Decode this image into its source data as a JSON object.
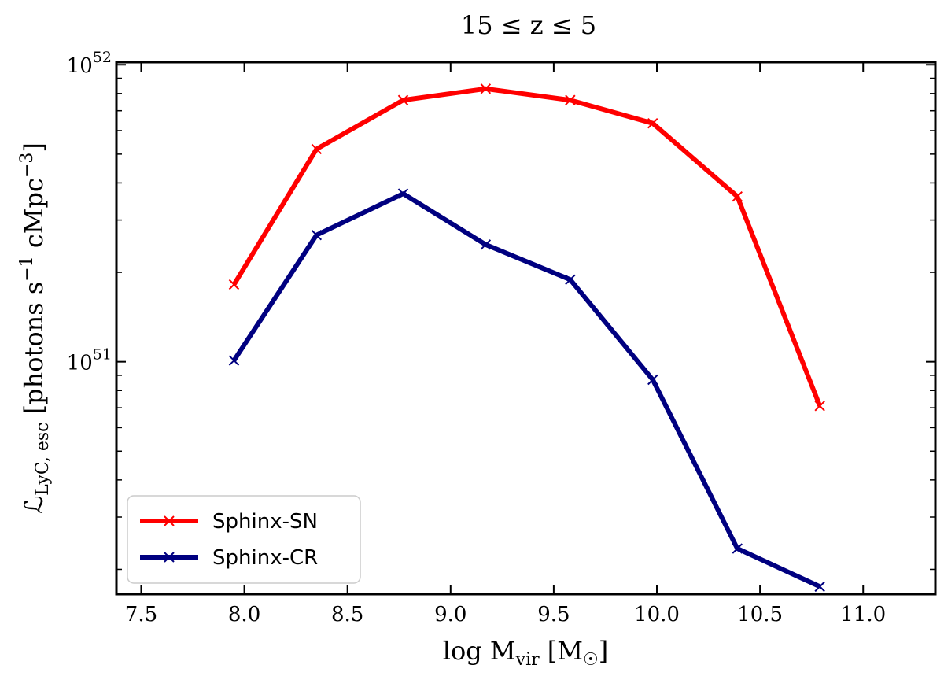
{
  "chart_data": {
    "type": "line",
    "title": "15 ≤ z ≤ 5",
    "xlabel": {
      "base": "log M",
      "sub": "vir",
      "unit_open": " [M",
      "unit_sub": "☉",
      "unit_close": "]"
    },
    "ylabel": {
      "base": "ℒ",
      "sub": "LyC, esc",
      "unit_open": " [photons s",
      "sup1": "−1",
      "unit_mid": " cMpc",
      "sup2": "−3",
      "unit_close": "]"
    },
    "xlim": [
      7.38,
      11.35
    ],
    "ylim": [
      1.65e+50,
      1.02e+52
    ],
    "yscale": "log",
    "xticks": [
      7.5,
      8.0,
      8.5,
      9.0,
      9.5,
      10.0,
      10.5,
      11.0
    ],
    "xtick_labels": [
      "7.5",
      "8.0",
      "8.5",
      "9.0",
      "9.5",
      "10.0",
      "10.5",
      "11.0"
    ],
    "yticks_major": [
      {
        "value": 1e+51,
        "base": "10",
        "exp": "51"
      },
      {
        "value": 1e+52,
        "base": "10",
        "exp": "52"
      }
    ],
    "yticks_minor": [
      2e+50,
      3e+50,
      4e+50,
      5e+50,
      6e+50,
      7e+50,
      8e+50,
      9e+50,
      2e+51,
      3e+51,
      4e+51,
      5e+51,
      6e+51,
      7e+51,
      8e+51,
      9e+51
    ],
    "x": [
      7.95,
      8.35,
      8.77,
      9.17,
      9.58,
      9.98,
      10.39,
      10.79
    ],
    "series": [
      {
        "name": "Sphinx-SN",
        "color": "#ff0000",
        "values": [
          1.82e+51,
          5.2e+51,
          7.6e+51,
          8.3e+51,
          7.6e+51,
          6.35e+51,
          3.6e+51,
          7.1e+50
        ]
      },
      {
        "name": "Sphinx-CR",
        "color": "#000080",
        "values": [
          1.01e+51,
          2.67e+51,
          3.68e+51,
          2.48e+51,
          1.89e+51,
          8.7e+50,
          2.35e+50,
          1.75e+50
        ]
      }
    ],
    "legend": {
      "position": "bottom-left"
    },
    "grid": false
  }
}
